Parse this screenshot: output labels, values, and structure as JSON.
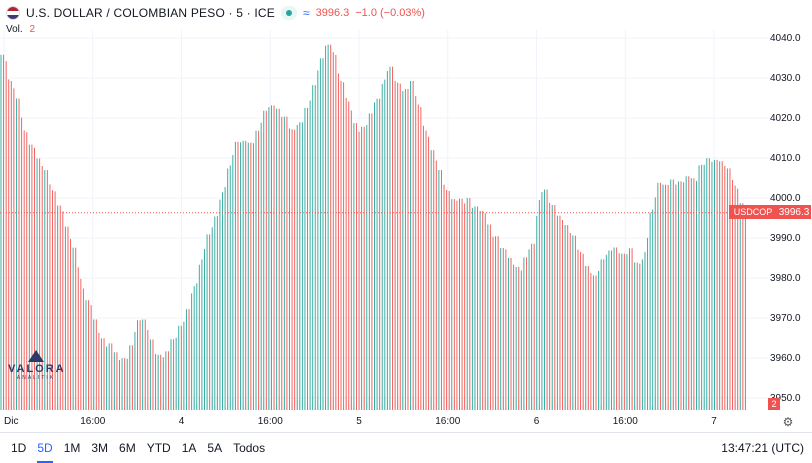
{
  "header": {
    "title": "U.S. DOLLAR / COLOMBIAN PESO · 5 · ICE",
    "price": "3996.3",
    "change": "−1.0 (−0.03%)"
  },
  "volume": {
    "label": "Vol.",
    "value": "2"
  },
  "price_badge": {
    "symbol": "USDCOP",
    "price": "3996.3"
  },
  "vol_badge": "2",
  "logo": {
    "text": "VALORA",
    "sub": "ANALITIK"
  },
  "ranges": [
    "1D",
    "5D",
    "1M",
    "3M",
    "6M",
    "YTD",
    "1A",
    "5A",
    "Todos"
  ],
  "active_range": "5D",
  "clock": "13:47:21 (UTC)",
  "colors": {
    "up": "#26a69a",
    "down": "#ef5350",
    "grid": "#f0f3fa",
    "current_line": "#ef5350"
  },
  "icons": [
    "flag-icon",
    "status-dot-icon",
    "wave-icon",
    "settings-icon",
    "logo-icon"
  ],
  "chart_data": {
    "type": "ohlc",
    "symbol": "USDCOP",
    "interval": "5",
    "current_price": 3996.3,
    "ylim": [
      3947,
      4042
    ],
    "price_ticks": [
      3950.0,
      3960.0,
      3970.0,
      3980.0,
      3990.0,
      4000.0,
      4010.0,
      4020.0,
      4030.0,
      4040.0
    ],
    "x_labels": [
      "Dic",
      "16:00",
      "4",
      "16:00",
      "5",
      "16:00",
      "6",
      "16:00",
      "7"
    ],
    "grid": true,
    "legend": "none",
    "close_series": [
      4035,
      4028,
      4024,
      4015,
      4012,
      4008,
      4005,
      4000,
      3996,
      3990,
      3985,
      3975,
      3972,
      3966,
      3962,
      3962,
      3958,
      3958,
      3963,
      3970,
      3965,
      3960,
      3958,
      3962,
      3965,
      3968,
      3974,
      3980,
      3988,
      3992,
      3998,
      4005,
      4012,
      4013,
      4012,
      4015,
      4020,
      4022,
      4020,
      4018,
      4015,
      4018,
      4022,
      4028,
      4035,
      4038,
      4030,
      4025,
      4018,
      4015,
      4017,
      4022,
      4025,
      4032,
      4028,
      4025,
      4028,
      4022,
      4015,
      4010,
      4005,
      4000,
      3998,
      3998,
      3998,
      3996,
      3995,
      3990,
      3988,
      3985,
      3982,
      3980,
      3985,
      3988,
      4002,
      3998,
      3995,
      3992,
      3990,
      3986,
      3982,
      3978,
      3982,
      3985,
      3986,
      3984,
      3986,
      3982,
      3983,
      3995,
      4002,
      4002,
      4003,
      4002,
      4004,
      4003,
      4008,
      4008,
      4008,
      4007,
      4004,
      3998,
      3996.3
    ]
  }
}
